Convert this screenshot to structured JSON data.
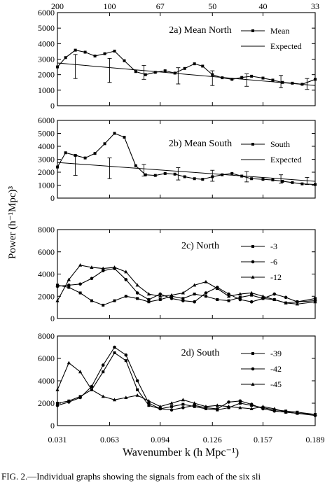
{
  "figure": {
    "ylabel": "Power (h⁻¹Mpc)³",
    "xlabel": "Wavenumber k (h Mpc⁻¹)",
    "top_ticks": [
      "200",
      "100",
      "67",
      "50",
      "40",
      "33"
    ],
    "bottom_ticks": [
      "0.031",
      "0.063",
      "0.094",
      "0.126",
      "0.157",
      "0.189"
    ],
    "caption": "FIG. 2.—Individual graphs showing the signals from each of the six sli"
  },
  "chart_data": [
    {
      "type": "line",
      "title": "2a) Mean North",
      "ylim": [
        0,
        6000
      ],
      "yticks": [
        "0",
        "1000",
        "2000",
        "3000",
        "4000",
        "5000",
        "6000"
      ],
      "legend": [
        "Mean",
        "Expected"
      ],
      "series": [
        {
          "name": "Mean",
          "marker": "square",
          "x": [
            0.031,
            0.036,
            0.042,
            0.048,
            0.054,
            0.06,
            0.066,
            0.072,
            0.079,
            0.085,
            0.091,
            0.097,
            0.103,
            0.109,
            0.115,
            0.12,
            0.126,
            0.132,
            0.138,
            0.144,
            0.15,
            0.157,
            0.163,
            0.169,
            0.175,
            0.181,
            0.189
          ],
          "values": [
            2500,
            3100,
            3580,
            3450,
            3200,
            3350,
            3520,
            2900,
            2200,
            2000,
            2150,
            2250,
            2100,
            2400,
            2700,
            2550,
            2000,
            1800,
            1700,
            1820,
            1900,
            1780,
            1650,
            1500,
            1450,
            1380,
            1700
          ]
        },
        {
          "name": "Expected",
          "marker": "none",
          "x": [
            0.031,
            0.189
          ],
          "values": [
            2750,
            1300
          ]
        }
      ],
      "errorbars": {
        "x": [
          0.042,
          0.063,
          0.084,
          0.105,
          0.126,
          0.147,
          0.168,
          0.184
        ],
        "lo": [
          1750,
          1500,
          1700,
          1400,
          1300,
          1250,
          1150,
          1050
        ],
        "hi": [
          3300,
          3050,
          2600,
          2450,
          2250,
          2050,
          1950,
          1750
        ]
      }
    },
    {
      "type": "line",
      "title": "2b) Mean South",
      "ylim": [
        0,
        6000
      ],
      "yticks": [
        "0",
        "1000",
        "2000",
        "3000",
        "4000",
        "5000",
        "6000"
      ],
      "legend": [
        "South",
        "Expected"
      ],
      "series": [
        {
          "name": "South",
          "marker": "square",
          "x": [
            0.031,
            0.036,
            0.042,
            0.048,
            0.054,
            0.06,
            0.066,
            0.072,
            0.079,
            0.085,
            0.091,
            0.097,
            0.103,
            0.109,
            0.115,
            0.12,
            0.126,
            0.132,
            0.138,
            0.144,
            0.15,
            0.157,
            0.163,
            0.169,
            0.175,
            0.181,
            0.189
          ],
          "values": [
            2400,
            3500,
            3300,
            3100,
            3450,
            4200,
            5000,
            4700,
            2500,
            1800,
            1750,
            1900,
            1850,
            1650,
            1500,
            1450,
            1650,
            1800,
            1900,
            1700,
            1500,
            1450,
            1400,
            1300,
            1200,
            1100,
            1050
          ]
        },
        {
          "name": "Expected",
          "marker": "none",
          "x": [
            0.031,
            0.189
          ],
          "values": [
            2750,
            1300
          ]
        }
      ],
      "errorbars": {
        "x": [
          0.042,
          0.063,
          0.084,
          0.105,
          0.126,
          0.147,
          0.168,
          0.184
        ],
        "lo": [
          1750,
          1500,
          1700,
          1400,
          1300,
          1250,
          1150,
          1050
        ],
        "hi": [
          3300,
          3100,
          2600,
          2350,
          2150,
          2050,
          1800,
          1600
        ]
      }
    },
    {
      "type": "line",
      "title": "2c) North",
      "ylim": [
        0,
        8000
      ],
      "yticks": [
        "0",
        "2000",
        "4000",
        "6000",
        "8000"
      ],
      "legend": [
        "-3",
        "-6",
        "-12"
      ],
      "series": [
        {
          "name": "-3",
          "marker": "square",
          "x": [
            0.031,
            0.038,
            0.045,
            0.052,
            0.059,
            0.066,
            0.073,
            0.08,
            0.087,
            0.094,
            0.101,
            0.108,
            0.115,
            0.122,
            0.129,
            0.136,
            0.143,
            0.15,
            0.157,
            0.164,
            0.171,
            0.178,
            0.189
          ],
          "values": [
            3000,
            2800,
            2300,
            1600,
            1200,
            1600,
            2000,
            1800,
            1500,
            1700,
            2000,
            1800,
            2200,
            2000,
            1700,
            1600,
            1900,
            2100,
            1800,
            1700,
            1400,
            1500,
            1800
          ]
        },
        {
          "name": "-6",
          "marker": "circle",
          "x": [
            0.031,
            0.038,
            0.045,
            0.052,
            0.059,
            0.066,
            0.073,
            0.08,
            0.087,
            0.094,
            0.101,
            0.108,
            0.115,
            0.122,
            0.129,
            0.136,
            0.143,
            0.15,
            0.157,
            0.164,
            0.171,
            0.178,
            0.189
          ],
          "values": [
            2900,
            3000,
            3100,
            3600,
            4300,
            4500,
            3500,
            2300,
            1700,
            2200,
            1800,
            1600,
            1500,
            2300,
            2800,
            2200,
            1700,
            1500,
            1800,
            2200,
            1900,
            1500,
            1600
          ]
        },
        {
          "name": "-12",
          "marker": "triangle",
          "x": [
            0.031,
            0.038,
            0.045,
            0.052,
            0.059,
            0.066,
            0.073,
            0.08,
            0.087,
            0.094,
            0.101,
            0.108,
            0.115,
            0.122,
            0.129,
            0.136,
            0.143,
            0.15,
            0.157,
            0.164,
            0.171,
            0.178,
            0.189
          ],
          "values": [
            1600,
            3500,
            4800,
            4600,
            4500,
            4600,
            4200,
            3000,
            2200,
            2000,
            2100,
            2300,
            3000,
            3300,
            2700,
            2000,
            2200,
            2300,
            2000,
            1700,
            1400,
            1300,
            1500
          ]
        }
      ]
    },
    {
      "type": "line",
      "title": "2d) South",
      "ylim": [
        0,
        8000
      ],
      "yticks": [
        "0",
        "2000",
        "4000",
        "6000",
        "8000"
      ],
      "legend": [
        "-39",
        "-42",
        "-45"
      ],
      "series": [
        {
          "name": "-39",
          "marker": "square",
          "x": [
            0.031,
            0.038,
            0.045,
            0.052,
            0.059,
            0.066,
            0.073,
            0.08,
            0.087,
            0.094,
            0.101,
            0.108,
            0.115,
            0.122,
            0.129,
            0.136,
            0.143,
            0.15,
            0.157,
            0.164,
            0.171,
            0.178,
            0.189
          ],
          "values": [
            2000,
            2200,
            2600,
            3200,
            4800,
            6500,
            5800,
            3200,
            1800,
            1500,
            1700,
            1900,
            1700,
            1500,
            1400,
            1600,
            2000,
            1800,
            1600,
            1400,
            1300,
            1200,
            1000
          ]
        },
        {
          "name": "-42",
          "marker": "circle",
          "x": [
            0.031,
            0.038,
            0.045,
            0.052,
            0.059,
            0.066,
            0.073,
            0.08,
            0.087,
            0.094,
            0.101,
            0.108,
            0.115,
            0.122,
            0.129,
            0.136,
            0.143,
            0.15,
            0.157,
            0.164,
            0.171,
            0.178,
            0.189
          ],
          "values": [
            1800,
            2100,
            2500,
            3500,
            5400,
            7000,
            6300,
            4000,
            2000,
            1500,
            1400,
            1600,
            1800,
            1600,
            1500,
            2100,
            2200,
            1900,
            1500,
            1300,
            1200,
            1100,
            900
          ]
        },
        {
          "name": "-45",
          "marker": "triangle",
          "x": [
            0.031,
            0.038,
            0.045,
            0.052,
            0.059,
            0.066,
            0.073,
            0.08,
            0.087,
            0.094,
            0.101,
            0.108,
            0.115,
            0.122,
            0.129,
            0.136,
            0.143,
            0.15,
            0.157,
            0.164,
            0.171,
            0.178,
            0.189
          ],
          "values": [
            3200,
            5600,
            4800,
            3200,
            2600,
            2300,
            2500,
            2700,
            2200,
            1700,
            2000,
            2300,
            2000,
            1700,
            1800,
            1700,
            1600,
            1500,
            1700,
            1500,
            1200,
            1100,
            1000
          ]
        }
      ]
    }
  ]
}
